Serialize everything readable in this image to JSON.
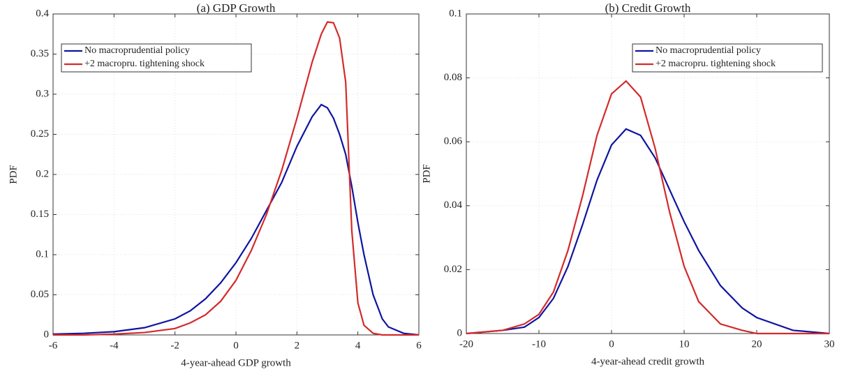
{
  "chart_data": [
    {
      "type": "line",
      "title": "(a) GDP Growth",
      "x_label": "4-year-ahead GDP growth",
      "y_label": "PDF",
      "x": [
        -6,
        -5,
        -4,
        -3,
        -2,
        -1.5,
        -1,
        -0.5,
        0,
        0.5,
        1,
        1.5,
        2,
        2.5,
        2.8,
        3,
        3.2,
        3.4,
        3.6,
        3.8,
        4,
        4.2,
        4.5,
        4.8,
        5,
        5.5,
        6
      ],
      "series": [
        {
          "name": "No macroprudential policy",
          "color": "#0f14a0",
          "values": [
            0.001,
            0.002,
            0.004,
            0.009,
            0.02,
            0.03,
            0.045,
            0.065,
            0.09,
            0.12,
            0.155,
            0.19,
            0.235,
            0.272,
            0.287,
            0.283,
            0.27,
            0.25,
            0.225,
            0.185,
            0.14,
            0.1,
            0.05,
            0.02,
            0.01,
            0.002,
            0
          ]
        },
        {
          "name": "+2 macropru. tightening shock",
          "color": "#d42a2a",
          "values": [
            0,
            0,
            0.001,
            0.003,
            0.008,
            0.015,
            0.025,
            0.042,
            0.068,
            0.105,
            0.15,
            0.205,
            0.27,
            0.34,
            0.375,
            0.39,
            0.389,
            0.37,
            0.315,
            0.13,
            0.04,
            0.012,
            0.002,
            0,
            0,
            0,
            0
          ]
        }
      ],
      "xlim": [
        -6,
        6
      ],
      "xticks": [
        -6,
        -4,
        -2,
        0,
        2,
        4,
        6
      ],
      "ylim": [
        0,
        0.4
      ],
      "yticks": [
        0,
        0.05,
        0.1,
        0.15,
        0.2,
        0.25,
        0.3,
        0.35,
        0.4
      ],
      "grid": true,
      "legend": "upper left"
    },
    {
      "type": "line",
      "title": "(b) Credit Growth",
      "x_label": "4-year-ahead credit growth",
      "y_label": "PDF",
      "x": [
        -20,
        -15,
        -12,
        -10,
        -8,
        -6,
        -4,
        -2,
        0,
        2,
        4,
        6,
        8,
        10,
        12,
        15,
        18,
        20,
        25,
        30
      ],
      "series": [
        {
          "name": "No macroprudential policy",
          "color": "#0f14a0",
          "values": [
            0,
            0.001,
            0.002,
            0.005,
            0.011,
            0.021,
            0.034,
            0.048,
            0.059,
            0.064,
            0.062,
            0.055,
            0.045,
            0.035,
            0.026,
            0.015,
            0.008,
            0.005,
            0.001,
            0
          ]
        },
        {
          "name": "+2 macropru. tightening shock",
          "color": "#d42a2a",
          "values": [
            0,
            0.001,
            0.003,
            0.006,
            0.013,
            0.026,
            0.043,
            0.062,
            0.075,
            0.079,
            0.074,
            0.058,
            0.038,
            0.021,
            0.01,
            0.003,
            0.001,
            0,
            0,
            0
          ]
        }
      ],
      "xlim": [
        -20,
        30
      ],
      "xticks": [
        -20,
        -10,
        0,
        10,
        20,
        30
      ],
      "ylim": [
        0,
        0.1
      ],
      "yticks": [
        0,
        0.02,
        0.04,
        0.06,
        0.08,
        0.1
      ],
      "grid": true,
      "legend": "upper right"
    }
  ]
}
